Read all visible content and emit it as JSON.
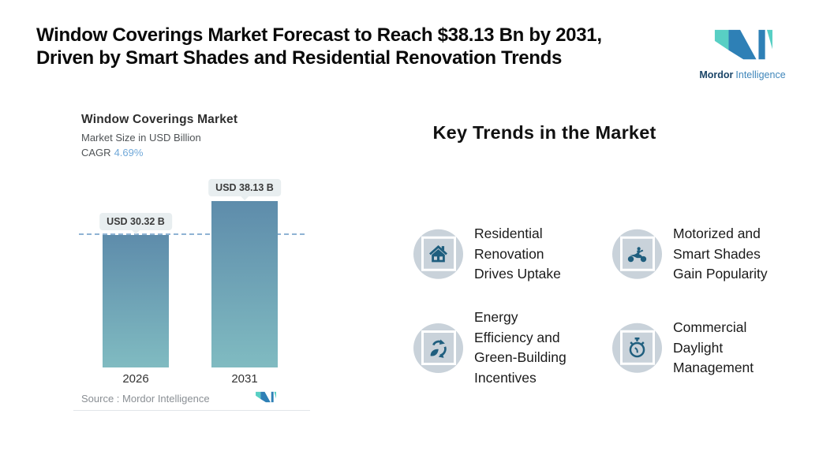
{
  "header": {
    "title_line1": "Window Coverings Market Forecast to Reach $38.13 Bn by 2031,",
    "title_line2": "Driven by Smart Shades and Residential Renovation Trends"
  },
  "brand": {
    "name_bold": "Mordor",
    "name_light": "Intelligence",
    "logo_teal": "#58cfc4",
    "logo_blue": "#2e80b6"
  },
  "chart": {
    "title": "Window Coverings Market",
    "subtitle": "Market Size in USD Billion",
    "cagr_label": "CAGR",
    "cagr_value": "4.69%",
    "source_label": "Source :  Mordor Intelligence"
  },
  "chart_data": {
    "type": "bar",
    "title": "Window Coverings Market",
    "ylabel": "Market Size in USD Billion",
    "categories": [
      "2026",
      "2031"
    ],
    "values": [
      30.32,
      38.13
    ],
    "value_labels": [
      "USD 30.32 B",
      "USD 38.13 B"
    ],
    "cagr_pct": 4.69,
    "reference_line": 30.32,
    "ylim": [
      0,
      42
    ],
    "grid": "off",
    "legend": "none",
    "bar_color_top": "#5e8cab",
    "bar_color_bottom": "#80bbc1",
    "dashed_line_color": "#8fb3d4"
  },
  "trends": {
    "title": "Key Trends in the Market",
    "icon_color": "#1f5e7e",
    "badge_color": "#c9d2da",
    "items": [
      {
        "icon": "house-icon",
        "label": "Residential\nRenovation\nDrives Uptake"
      },
      {
        "icon": "motorcycle-icon",
        "label": "Motorized and\nSmart Shades\nGain Popularity"
      },
      {
        "icon": "recycle-leaf-icon",
        "label": "Energy\nEfficiency and\nGreen-Building\nIncentives"
      },
      {
        "icon": "stopwatch-icon",
        "label": "Commercial\nDaylight\nManagement"
      }
    ]
  }
}
